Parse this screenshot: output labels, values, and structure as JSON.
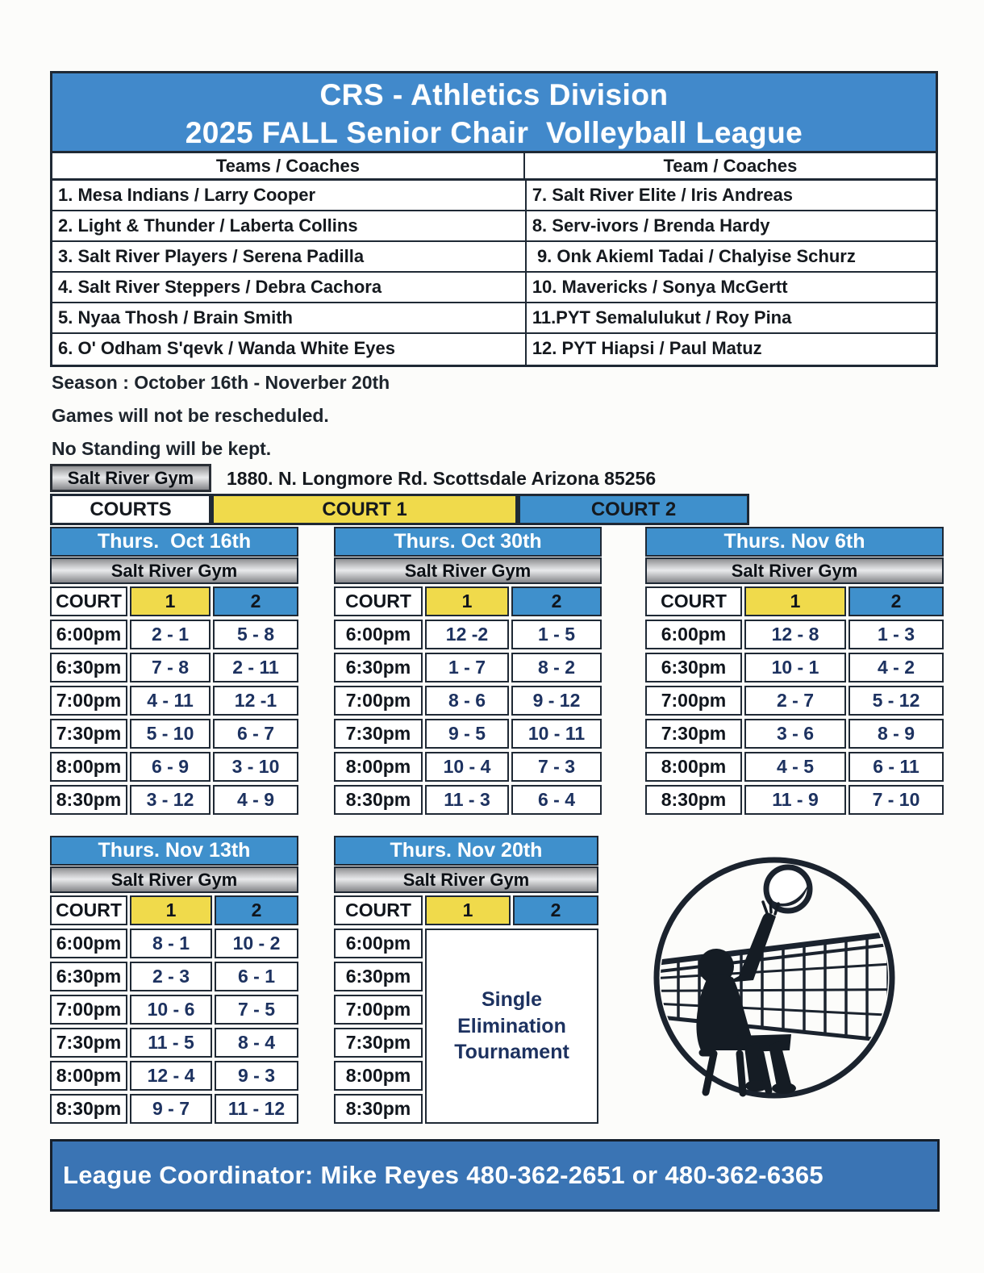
{
  "title": {
    "line1": "CRS - Athletics Division",
    "line2": "2025 FALL Senior Chair  Volleyball League"
  },
  "teams": {
    "header_left": "Teams / Coaches",
    "header_right": "Team / Coaches",
    "left": [
      "1. Mesa Indians / Larry Cooper",
      "2. Light & Thunder / Laberta Collins",
      "3. Salt River Players / Serena Padilla",
      "4. Salt River Steppers / Debra Cachora",
      "5. Nyaa Thosh / Brain Smith",
      "6. O' Odham S'qevk / Wanda White Eyes"
    ],
    "right": [
      "7. Salt River Elite / Iris Andreas",
      "8. Serv-ivors / Brenda Hardy",
      " 9. Onk Akieml Tadai / Chalyise Schurz",
      "10. Mavericks / Sonya McGertt",
      "11.PYT Semalulukut / Roy Pina",
      "12. PYT Hiapsi / Paul Matuz"
    ]
  },
  "notes": {
    "season": "Season : October 16th - Noverber 20th",
    "reschedule": "Games will not be rescheduled.",
    "standings": "No Standing will be kept."
  },
  "venue": {
    "gym": "Salt River Gym",
    "address": "1880. N. Longmore Rd. Scottsdale Arizona 85256"
  },
  "courts_banner": {
    "label": "COURTS",
    "court1": "COURT 1",
    "court2": "COURT 2"
  },
  "schedule_common": {
    "gym": "Salt River Gym",
    "court_label": "COURT",
    "court1": "1",
    "court2": "2"
  },
  "schedules": [
    {
      "date": "Thurs.  Oct 16th",
      "rows": [
        [
          "6:00pm",
          "2 - 1",
          "5 - 8"
        ],
        [
          "6:30pm",
          "7 - 8",
          "2 - 11"
        ],
        [
          "7:00pm",
          "4 - 11",
          "12 -1"
        ],
        [
          "7:30pm",
          "5 - 10",
          "6 - 7"
        ],
        [
          "8:00pm",
          "6 - 9",
          "3 - 10"
        ],
        [
          "8:30pm",
          "3 - 12",
          "4 - 9"
        ]
      ]
    },
    {
      "date": "Thurs. Oct 30th",
      "rows": [
        [
          "6:00pm",
          "12 -2",
          "1 - 5"
        ],
        [
          "6:30pm",
          "1 - 7",
          "8 - 2"
        ],
        [
          "7:00pm",
          "8 - 6",
          "9 - 12"
        ],
        [
          "7:30pm",
          "9 - 5",
          "10 - 11"
        ],
        [
          "8:00pm",
          "10 - 4",
          "7 - 3"
        ],
        [
          "8:30pm",
          "11 - 3",
          "6 - 4"
        ]
      ]
    },
    {
      "date": "Thurs. Nov 6th",
      "rows": [
        [
          "6:00pm",
          "12 - 8",
          "1 - 3"
        ],
        [
          "6:30pm",
          "10 - 1",
          "4 - 2"
        ],
        [
          "7:00pm",
          "2 - 7",
          "5 - 12"
        ],
        [
          "7:30pm",
          "3 - 6",
          "8 - 9"
        ],
        [
          "8:00pm",
          "4 - 5",
          "6 - 11"
        ],
        [
          "8:30pm",
          "11 - 9",
          "7 - 10"
        ]
      ]
    },
    {
      "date": "Thurs. Nov 13th",
      "rows": [
        [
          "6:00pm",
          "8 - 1",
          "10 - 2"
        ],
        [
          "6:30pm",
          "2 - 3",
          "6 - 1"
        ],
        [
          "7:00pm",
          "10 - 6",
          "7 - 5"
        ],
        [
          "7:30pm",
          "11 - 5",
          "8 - 4"
        ],
        [
          "8:00pm",
          "12 - 4",
          "9 - 3"
        ],
        [
          "8:30pm",
          "9 - 7",
          "11 - 12"
        ]
      ]
    },
    {
      "date": "Thurs. Nov 20th",
      "times": [
        "6:00pm",
        "6:30pm",
        "7:00pm",
        "7:30pm",
        "8:00pm",
        "8:30pm"
      ],
      "tournament": "Single Elimination Tournament"
    }
  ],
  "footer": {
    "text": "League Coordinator: Mike Reyes 480-362-2651 or 480-362-6365"
  },
  "icons": {
    "clipart": "seated-chair-volleyball-player"
  },
  "colors": {
    "header_blue": "#4189cb",
    "schedule_blue": "#3f90cc",
    "court_yellow": "#f0da4b",
    "footer_blue": "#3a74b4",
    "match_navy": "#1d3260"
  }
}
